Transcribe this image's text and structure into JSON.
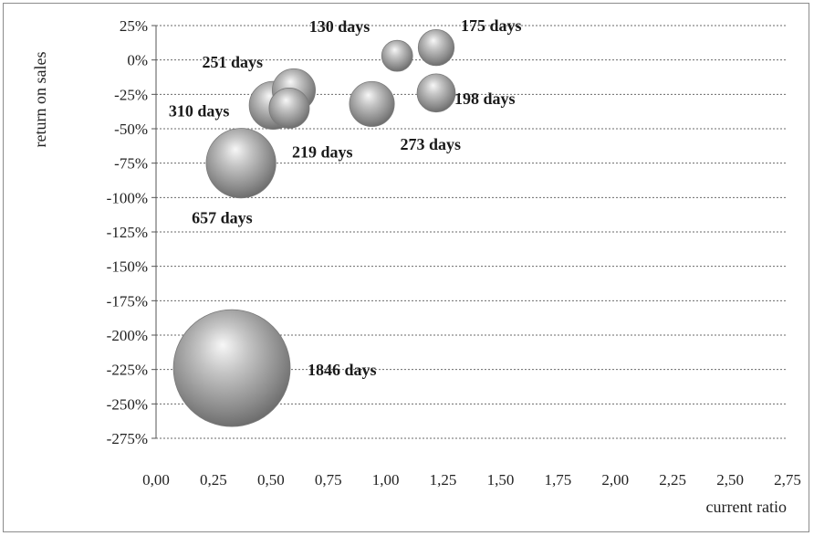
{
  "chart_data": {
    "type": "bubble",
    "xlabel": "current ratio",
    "ylabel": "return on sales",
    "xlim": [
      0,
      2.75
    ],
    "ylim": [
      -275,
      25
    ],
    "x_ticks": [
      "0,00",
      "0,25",
      "0,50",
      "0,75",
      "1,00",
      "1,25",
      "1,50",
      "1,75",
      "2,00",
      "2,25",
      "2,50",
      "2,75"
    ],
    "y_ticks": [
      "25%",
      "0%",
      "-25%",
      "-50%",
      "-75%",
      "-100%",
      "-125%",
      "-150%",
      "-175%",
      "-200%",
      "-225%",
      "-250%",
      "-275%"
    ],
    "grid": true,
    "points": [
      {
        "label": "130 days",
        "x": 1.05,
        "y": 3,
        "size": 130
      },
      {
        "label": "175 days",
        "x": 1.22,
        "y": 9,
        "size": 175
      },
      {
        "label": "251 days",
        "x": 0.6,
        "y": -22,
        "size": 251
      },
      {
        "label": "198 days",
        "x": 1.22,
        "y": -24,
        "size": 198
      },
      {
        "label": "219 days",
        "x": 0.58,
        "y": -35,
        "size": 219
      },
      {
        "label": "273 days",
        "x": 0.94,
        "y": -32,
        "size": 273
      },
      {
        "label": "310 days",
        "x": 0.51,
        "y": -33,
        "size": 310
      },
      {
        "label": "657 days",
        "x": 0.37,
        "y": -75,
        "size": 657
      },
      {
        "label": "1846 days",
        "x": 0.33,
        "y": -224,
        "size": 1846
      }
    ]
  }
}
